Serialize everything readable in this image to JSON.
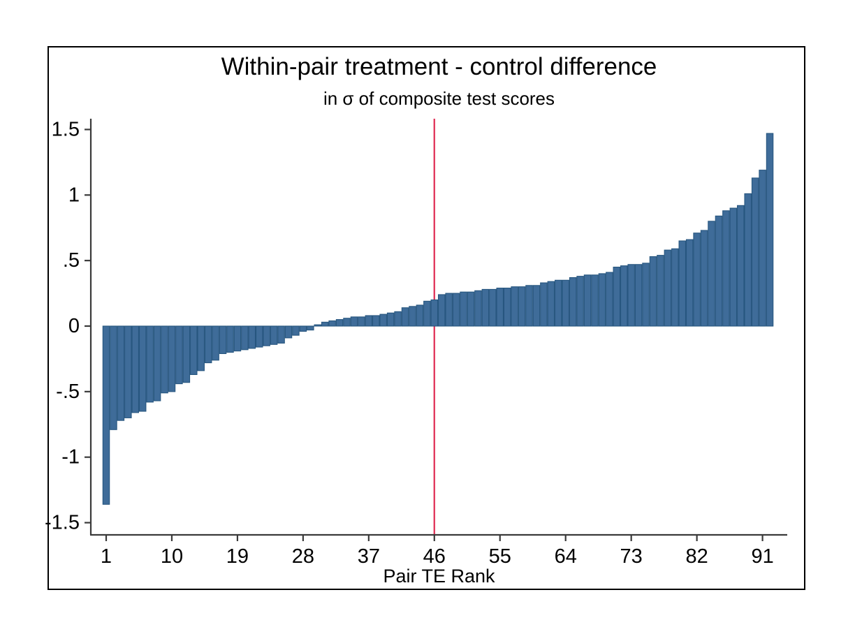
{
  "chart_data": {
    "type": "bar",
    "title": "Within-pair treatment - control difference",
    "subtitle": "in σ of composite test scores",
    "xlabel": "Pair TE Rank",
    "ylabel": "",
    "grid": false,
    "legend": "none",
    "ylim": [
      -1.5,
      1.5
    ],
    "x_start_rank": 1,
    "n_bars": 92,
    "x_ticks": [
      1,
      10,
      19,
      28,
      37,
      46,
      55,
      64,
      73,
      82,
      91
    ],
    "y_ticks": [
      {
        "label": "1.5",
        "value": 1.5
      },
      {
        "label": "1",
        "value": 1.0
      },
      {
        "label": ".5",
        "value": 0.5
      },
      {
        "label": "0",
        "value": 0.0
      },
      {
        "label": "-.5",
        "value": -0.5
      },
      {
        "label": "-1",
        "value": -1.0
      },
      {
        "label": "-1.5",
        "value": -1.5
      }
    ],
    "reference_line_x": 46,
    "values": [
      -1.36,
      -0.79,
      -0.72,
      -0.7,
      -0.66,
      -0.65,
      -0.58,
      -0.57,
      -0.51,
      -0.5,
      -0.44,
      -0.43,
      -0.37,
      -0.34,
      -0.28,
      -0.26,
      -0.21,
      -0.2,
      -0.19,
      -0.18,
      -0.17,
      -0.16,
      -0.15,
      -0.14,
      -0.13,
      -0.09,
      -0.07,
      -0.04,
      -0.03,
      0.01,
      0.03,
      0.04,
      0.05,
      0.06,
      0.07,
      0.07,
      0.08,
      0.08,
      0.09,
      0.1,
      0.11,
      0.14,
      0.15,
      0.16,
      0.19,
      0.2,
      0.24,
      0.25,
      0.25,
      0.26,
      0.26,
      0.27,
      0.28,
      0.28,
      0.29,
      0.29,
      0.3,
      0.3,
      0.31,
      0.31,
      0.33,
      0.34,
      0.35,
      0.35,
      0.37,
      0.38,
      0.39,
      0.39,
      0.4,
      0.41,
      0.45,
      0.46,
      0.47,
      0.47,
      0.48,
      0.53,
      0.54,
      0.58,
      0.59,
      0.65,
      0.66,
      0.71,
      0.73,
      0.8,
      0.84,
      0.88,
      0.9,
      0.92,
      1.01,
      1.13,
      1.19,
      1.47
    ],
    "colors": {
      "bar_fill": "#3f6c99",
      "bar_border": "#27567f",
      "reference_line": "#e23b5f",
      "axis": "#3a3a3a",
      "text": "#000000",
      "background": "#ffffff",
      "frame_border": "#000000"
    }
  }
}
